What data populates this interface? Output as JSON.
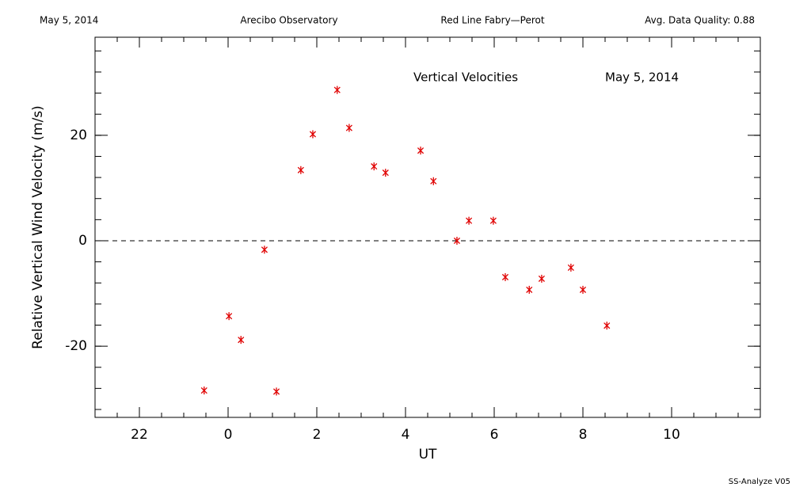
{
  "header": {
    "left": "May 5, 2014",
    "center_left": "Arecibo Observatory",
    "center_right": "Red Line Fabry—Perot",
    "right": "Avg. Data Quality: 0.88"
  },
  "footer": "SS-Analyze V05",
  "chart_data": {
    "type": "scatter",
    "title": "Vertical Velocities",
    "subtitle": "May 5, 2014",
    "x_label": "UT",
    "y_label": "Relative Vertical Wind Velocity (m/s)",
    "x": [
      -0.54,
      0.02,
      0.29,
      0.82,
      1.09,
      1.64,
      1.91,
      2.46,
      2.73,
      3.29,
      3.55,
      4.34,
      4.63,
      5.16,
      5.43,
      5.98,
      6.25,
      6.79,
      7.07,
      7.73,
      8.0,
      8.54
    ],
    "values": [
      -28.4,
      -14.3,
      -18.8,
      -1.7,
      -28.6,
      13.4,
      20.2,
      28.6,
      21.4,
      14.1,
      12.9,
      17.1,
      11.3,
      0,
      3.8,
      3.8,
      -6.9,
      -9.3,
      -7.2,
      -5.1,
      -9.3,
      -16.1
    ],
    "color": "#e00000",
    "xlim": [
      -3,
      12
    ],
    "xticks": [
      {
        "value": -2,
        "label": "22"
      },
      0,
      2,
      4,
      6,
      8,
      10
    ],
    "x_minor_step": 0.5,
    "ylim": [
      -33.5,
      38.6
    ],
    "yticks": [
      -20,
      0,
      20
    ],
    "y_minor_step": 4,
    "reference_line": 0
  }
}
